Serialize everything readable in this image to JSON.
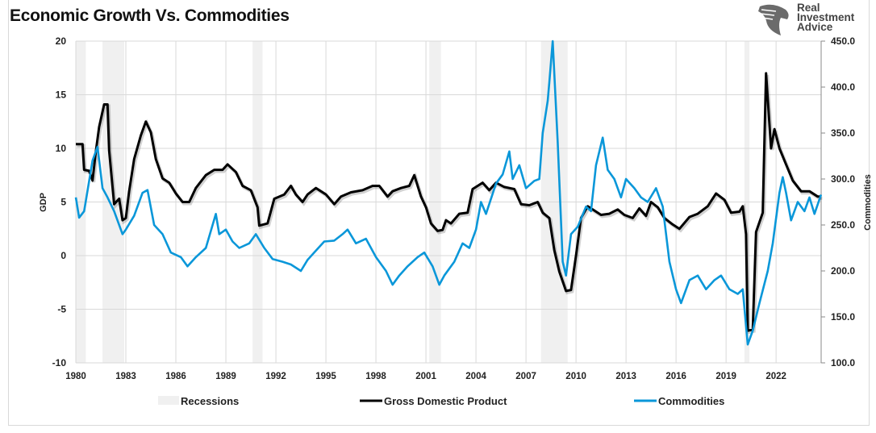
{
  "title": "Economic Growth Vs. Commodities",
  "logo": {
    "lines": [
      "Real",
      "Investment",
      "Advice"
    ],
    "icon": "eagle-head-icon"
  },
  "chart_data": {
    "type": "line",
    "title": "Economic Growth Vs. Commodities",
    "x_ticks": [
      "1980",
      "1983",
      "1986",
      "1989",
      "1992",
      "1995",
      "1998",
      "2001",
      "2004",
      "2007",
      "2010",
      "2013",
      "2016",
      "2019",
      "2022"
    ],
    "xlim": [
      1980,
      2024.75
    ],
    "y_left": {
      "label": "GDP",
      "lim": [
        -10,
        20
      ],
      "ticks": [
        "-10",
        "-5",
        "0",
        "5",
        "10",
        "15",
        "20"
      ]
    },
    "y_right": {
      "label": "Commodities",
      "lim": [
        100,
        450
      ],
      "ticks": [
        "100.0",
        "150.0",
        "200.0",
        "250.0",
        "300.0",
        "350.0",
        "400.0",
        "450.0"
      ]
    },
    "grid": true,
    "legend_position": "bottom",
    "legend": [
      {
        "label": "Recessions",
        "kind": "band",
        "color": "#f0f0f0"
      },
      {
        "label": "Gross Domestic Product",
        "kind": "line",
        "color": "#000000"
      },
      {
        "label": "Commodities",
        "kind": "line",
        "color": "#0a97d9"
      }
    ],
    "recessions": [
      [
        1980.0,
        1980.6
      ],
      [
        1981.6,
        1982.9
      ],
      [
        1990.6,
        1991.2
      ],
      [
        2001.2,
        2001.9
      ],
      [
        2007.9,
        2009.5
      ],
      [
        2020.1,
        2020.4
      ]
    ],
    "series": [
      {
        "name": "Gross Domestic Product",
        "axis": "left",
        "color": "#000000",
        "x": [
          1980.0,
          1980.4,
          1980.5,
          1980.8,
          1981.0,
          1981.2,
          1981.4,
          1981.7,
          1981.9,
          1982.0,
          1982.3,
          1982.6,
          1982.8,
          1983.0,
          1983.2,
          1983.5,
          1983.9,
          1984.2,
          1984.5,
          1984.8,
          1985.2,
          1985.6,
          1986.0,
          1986.4,
          1986.8,
          1987.2,
          1987.8,
          1988.3,
          1988.8,
          1989.1,
          1989.6,
          1990.0,
          1990.5,
          1990.9,
          1991.0,
          1991.5,
          1991.9,
          1992.5,
          1992.9,
          1993.2,
          1993.6,
          1993.9,
          1994.4,
          1995.0,
          1995.5,
          1995.9,
          1996.5,
          1997.2,
          1997.8,
          1998.2,
          1998.7,
          1999.0,
          1999.5,
          2000.0,
          2000.3,
          2000.7,
          2001.0,
          2001.3,
          2001.7,
          2002.0,
          2002.2,
          2002.5,
          2003.0,
          2003.5,
          2003.8,
          2004.4,
          2004.8,
          2005.2,
          2005.7,
          2006.3,
          2006.7,
          2007.2,
          2007.7,
          2008.0,
          2008.4,
          2008.7,
          2009.0,
          2009.4,
          2009.7,
          2010.0,
          2010.3,
          2010.7,
          2011.0,
          2011.5,
          2012.0,
          2012.5,
          2012.9,
          2013.4,
          2013.8,
          2014.2,
          2014.5,
          2014.9,
          2015.3,
          2015.8,
          2016.2,
          2016.8,
          2017.3,
          2017.9,
          2018.4,
          2018.9,
          2019.3,
          2019.8,
          2020.0,
          2020.2,
          2020.3,
          2020.6,
          2020.8,
          2021.2,
          2021.4,
          2021.7,
          2021.9,
          2022.2,
          2022.6,
          2023.0,
          2023.5,
          2024.0,
          2024.5,
          2024.7
        ],
        "y": [
          10.4,
          10.4,
          8,
          7.9,
          7,
          9.7,
          12,
          14.1,
          14.1,
          9.8,
          4.8,
          5.3,
          3.3,
          3.5,
          6,
          9,
          11.2,
          12.5,
          11.5,
          9,
          7.2,
          6.8,
          5.8,
          5,
          5,
          6.3,
          7.5,
          8,
          8,
          8.5,
          7.8,
          6.5,
          6.1,
          4.5,
          2.8,
          3,
          5.3,
          5.7,
          6.5,
          5.7,
          5,
          5.7,
          6.3,
          5.7,
          4.8,
          5.5,
          5.9,
          6.1,
          6.5,
          6.5,
          5.5,
          6,
          6.3,
          6.5,
          7.5,
          5.5,
          4.5,
          3,
          2.3,
          2.4,
          3.3,
          3,
          3.9,
          4,
          6.2,
          6.8,
          6.1,
          6.8,
          6.4,
          6.2,
          4.8,
          4.7,
          5,
          4,
          3.5,
          0.5,
          -1.5,
          -3.3,
          -3.2,
          0,
          3.5,
          4.6,
          4.3,
          3.8,
          3.9,
          4.3,
          3.8,
          3.5,
          4.4,
          3.7,
          5,
          4.5,
          3.5,
          2.9,
          2.5,
          3.6,
          3.9,
          4.6,
          5.8,
          5.2,
          4,
          4.1,
          4.6,
          2,
          -7,
          -6.9,
          2.2,
          4,
          17,
          10,
          11.8,
          10,
          8.5,
          7,
          6,
          6,
          5.5,
          5.5
        ]
      },
      {
        "name": "Commodities",
        "axis": "right",
        "color": "#0a97d9",
        "x": [
          1980.0,
          1980.2,
          1980.5,
          1981.0,
          1981.3,
          1981.6,
          1981.9,
          1982.3,
          1982.8,
          1983.0,
          1983.5,
          1984.0,
          1984.3,
          1984.7,
          1985.2,
          1985.7,
          1986.3,
          1986.7,
          1987.2,
          1987.8,
          1988.4,
          1988.6,
          1989.0,
          1989.4,
          1989.8,
          1990.4,
          1990.8,
          1991.3,
          1991.8,
          1992.4,
          1992.9,
          1993.5,
          1993.9,
          1994.4,
          1994.9,
          1995.5,
          1996.0,
          1996.3,
          1996.8,
          1997.4,
          1998.0,
          1998.6,
          1999.0,
          1999.4,
          1999.9,
          2000.5,
          2000.9,
          2001.4,
          2001.8,
          2002.1,
          2002.7,
          2003.2,
          2003.6,
          2004.0,
          2004.3,
          2004.6,
          2005.2,
          2005.6,
          2006.0,
          2006.2,
          2006.6,
          2007.0,
          2007.5,
          2007.8,
          2008.0,
          2008.3,
          2008.4,
          2008.6,
          2008.9,
          2009.2,
          2009.4,
          2009.7,
          2010.1,
          2010.6,
          2010.9,
          2011.2,
          2011.6,
          2011.9,
          2012.3,
          2012.7,
          2013.0,
          2013.5,
          2013.9,
          2014.3,
          2014.8,
          2015.2,
          2015.6,
          2016.0,
          2016.3,
          2016.8,
          2017.3,
          2017.8,
          2018.3,
          2018.7,
          2019.2,
          2019.7,
          2020.0,
          2020.3,
          2020.6,
          2021.0,
          2021.5,
          2021.8,
          2022.2,
          2022.4,
          2022.6,
          2022.9,
          2023.3,
          2023.7,
          2024.0,
          2024.3,
          2024.7
        ],
        "y": [
          280,
          258,
          265,
          320,
          335,
          290,
          280,
          265,
          240,
          245,
          260,
          285,
          288,
          250,
          240,
          220,
          215,
          205,
          215,
          225,
          262,
          240,
          245,
          232,
          225,
          230,
          240,
          225,
          213,
          210,
          207,
          200,
          212,
          222,
          232,
          233,
          240,
          245,
          230,
          235,
          215,
          200,
          185,
          195,
          205,
          215,
          220,
          205,
          185,
          195,
          210,
          230,
          225,
          245,
          275,
          262,
          295,
          305,
          330,
          300,
          315,
          290,
          298,
          300,
          350,
          385,
          405,
          450,
          340,
          210,
          195,
          240,
          248,
          270,
          265,
          315,
          345,
          310,
          300,
          280,
          300,
          290,
          280,
          275,
          290,
          270,
          210,
          180,
          165,
          190,
          195,
          180,
          190,
          195,
          180,
          175,
          180,
          120,
          135,
          165,
          200,
          230,
          285,
          302,
          285,
          255,
          275,
          265,
          280,
          262,
          283
        ]
      }
    ]
  }
}
